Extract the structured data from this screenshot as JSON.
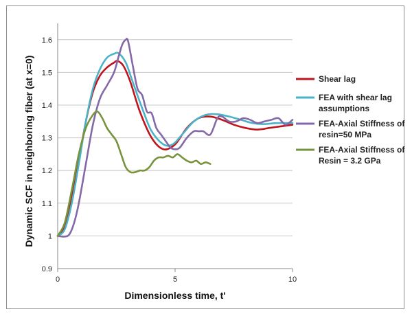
{
  "chart_data": {
    "type": "line",
    "title": "",
    "xlabel": "Dimensionless time, t'",
    "ylabel": "Dynamic SCF in neighboring fiber (at x=0)",
    "xlim": [
      0,
      10
    ],
    "ylim": [
      0.9,
      1.65
    ],
    "xticks": [
      0,
      5,
      10
    ],
    "yticks": [
      0.9,
      1,
      1.1,
      1.2,
      1.3,
      1.4,
      1.5,
      1.6
    ],
    "ytick_labels": [
      "0.9",
      "1",
      "1.1",
      "1.2",
      "1.3",
      "1.4",
      "1.5",
      "1.6"
    ],
    "grid": "horizontal",
    "legend_position": "right",
    "series": [
      {
        "name": "Shear lag",
        "legend_lines": [
          "Shear lag"
        ],
        "color": "#c0141c",
        "x": [
          0,
          0.3,
          0.6,
          0.9,
          1.2,
          1.5,
          1.8,
          2.1,
          2.4,
          2.55,
          2.8,
          3.1,
          3.5,
          4.0,
          4.5,
          5.0,
          5.5,
          6.0,
          6.5,
          7.0,
          7.5,
          8.0,
          8.5,
          9.0,
          9.5,
          10.0
        ],
        "y": [
          1.0,
          1.03,
          1.12,
          1.23,
          1.35,
          1.44,
          1.49,
          1.515,
          1.53,
          1.535,
          1.52,
          1.47,
          1.38,
          1.3,
          1.265,
          1.28,
          1.33,
          1.36,
          1.365,
          1.355,
          1.34,
          1.33,
          1.325,
          1.33,
          1.335,
          1.34
        ]
      },
      {
        "name": "FEA with shear lag assumptions",
        "legend_lines": [
          "FEA with shear lag",
          "assumptions"
        ],
        "color": "#4bb3c9",
        "x": [
          0,
          0.3,
          0.6,
          0.9,
          1.2,
          1.5,
          1.8,
          2.1,
          2.4,
          2.6,
          2.9,
          3.2,
          3.6,
          4.0,
          4.5,
          4.9,
          5.3,
          5.8,
          6.3,
          6.8,
          7.3,
          7.8,
          8.3,
          8.8,
          9.3,
          10.0
        ],
        "y": [
          1.0,
          1.02,
          1.1,
          1.22,
          1.35,
          1.45,
          1.51,
          1.545,
          1.557,
          1.558,
          1.53,
          1.47,
          1.39,
          1.32,
          1.28,
          1.28,
          1.31,
          1.35,
          1.37,
          1.372,
          1.365,
          1.355,
          1.345,
          1.342,
          1.345,
          1.345
        ]
      },
      {
        "name": "FEA-Axial Stiffness of resin=50 MPa",
        "legend_lines": [
          "FEA-Axial Stiffness of",
          "resin=50 MPa"
        ],
        "color": "#8469a8",
        "x": [
          0,
          0.3,
          0.5,
          0.7,
          0.9,
          1.2,
          1.5,
          1.8,
          2.1,
          2.4,
          2.6,
          2.75,
          2.9,
          3.0,
          3.2,
          3.4,
          3.6,
          3.8,
          4.0,
          4.2,
          4.4,
          4.6,
          4.8,
          5.0,
          5.2,
          5.5,
          5.8,
          6.0,
          6.2,
          6.5,
          6.8,
          7.0,
          7.3,
          7.6,
          7.9,
          8.2,
          8.5,
          8.8,
          9.1,
          9.4,
          9.7,
          10.0
        ],
        "y": [
          1.0,
          0.998,
          1.005,
          1.04,
          1.1,
          1.22,
          1.34,
          1.42,
          1.46,
          1.5,
          1.55,
          1.585,
          1.6,
          1.595,
          1.52,
          1.45,
          1.43,
          1.38,
          1.375,
          1.33,
          1.31,
          1.29,
          1.27,
          1.265,
          1.27,
          1.3,
          1.32,
          1.32,
          1.32,
          1.31,
          1.36,
          1.365,
          1.35,
          1.35,
          1.36,
          1.355,
          1.345,
          1.35,
          1.355,
          1.36,
          1.34,
          1.355
        ]
      },
      {
        "name": "FEA-Axial Stiffness of Resin = 3.2 GPa",
        "legend_lines": [
          "FEA-Axial Stiffness of",
          "Resin = 3.2 GPa"
        ],
        "color": "#77933c",
        "x": [
          0,
          0.3,
          0.6,
          0.9,
          1.2,
          1.5,
          1.7,
          1.9,
          2.1,
          2.3,
          2.5,
          2.7,
          2.9,
          3.1,
          3.3,
          3.5,
          3.7,
          3.9,
          4.1,
          4.3,
          4.5,
          4.7,
          4.9,
          5.1,
          5.3,
          5.5,
          5.7,
          5.9,
          6.1,
          6.3,
          6.5
        ],
        "y": [
          1.0,
          1.04,
          1.14,
          1.25,
          1.33,
          1.37,
          1.38,
          1.36,
          1.33,
          1.31,
          1.29,
          1.25,
          1.21,
          1.195,
          1.195,
          1.2,
          1.2,
          1.21,
          1.23,
          1.24,
          1.24,
          1.245,
          1.24,
          1.25,
          1.24,
          1.23,
          1.225,
          1.23,
          1.22,
          1.225,
          1.22
        ]
      }
    ]
  }
}
